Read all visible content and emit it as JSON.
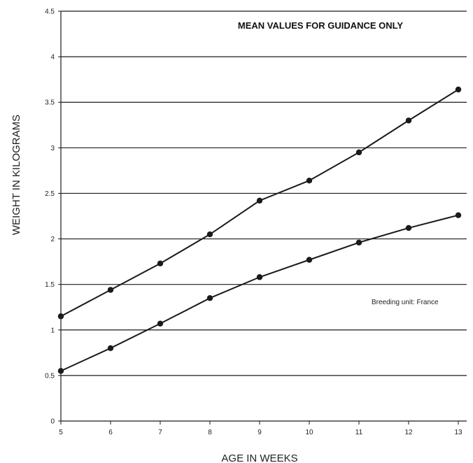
{
  "chart_data": {
    "type": "line",
    "title": "MEAN VALUES FOR GUIDANCE ONLY",
    "xlabel": "AGE IN WEEKS",
    "ylabel": "WEIGHT IN KILOGRAMS",
    "annotation": "Breeding unit: France",
    "x": [
      5,
      6,
      7,
      8,
      9,
      10,
      11,
      12,
      13
    ],
    "x_tick_labels": [
      "5",
      "6",
      "7",
      "8",
      "9",
      "10",
      "11",
      "12",
      "13"
    ],
    "y_tick_labels": [
      "0",
      "0.5",
      "1",
      "1.5",
      "2",
      "2.5",
      "3",
      "3.5",
      "4",
      "4.5"
    ],
    "y_ticks": [
      0,
      0.5,
      1,
      1.5,
      2,
      2.5,
      3,
      3.5,
      4,
      4.5
    ],
    "xlim": [
      5,
      13
    ],
    "ylim": [
      0,
      4.5
    ],
    "grid": "horizontal",
    "series": [
      {
        "values": [
          1.15,
          1.44,
          1.73,
          2.05,
          2.42,
          2.64,
          2.95,
          3.3,
          3.64
        ]
      },
      {
        "values": [
          0.55,
          0.8,
          1.07,
          1.35,
          1.58,
          1.77,
          1.96,
          2.12,
          2.26
        ]
      }
    ],
    "colors": {
      "line": "#1a1a1a",
      "grid": "#1a1a1a",
      "text": "#222222"
    }
  }
}
